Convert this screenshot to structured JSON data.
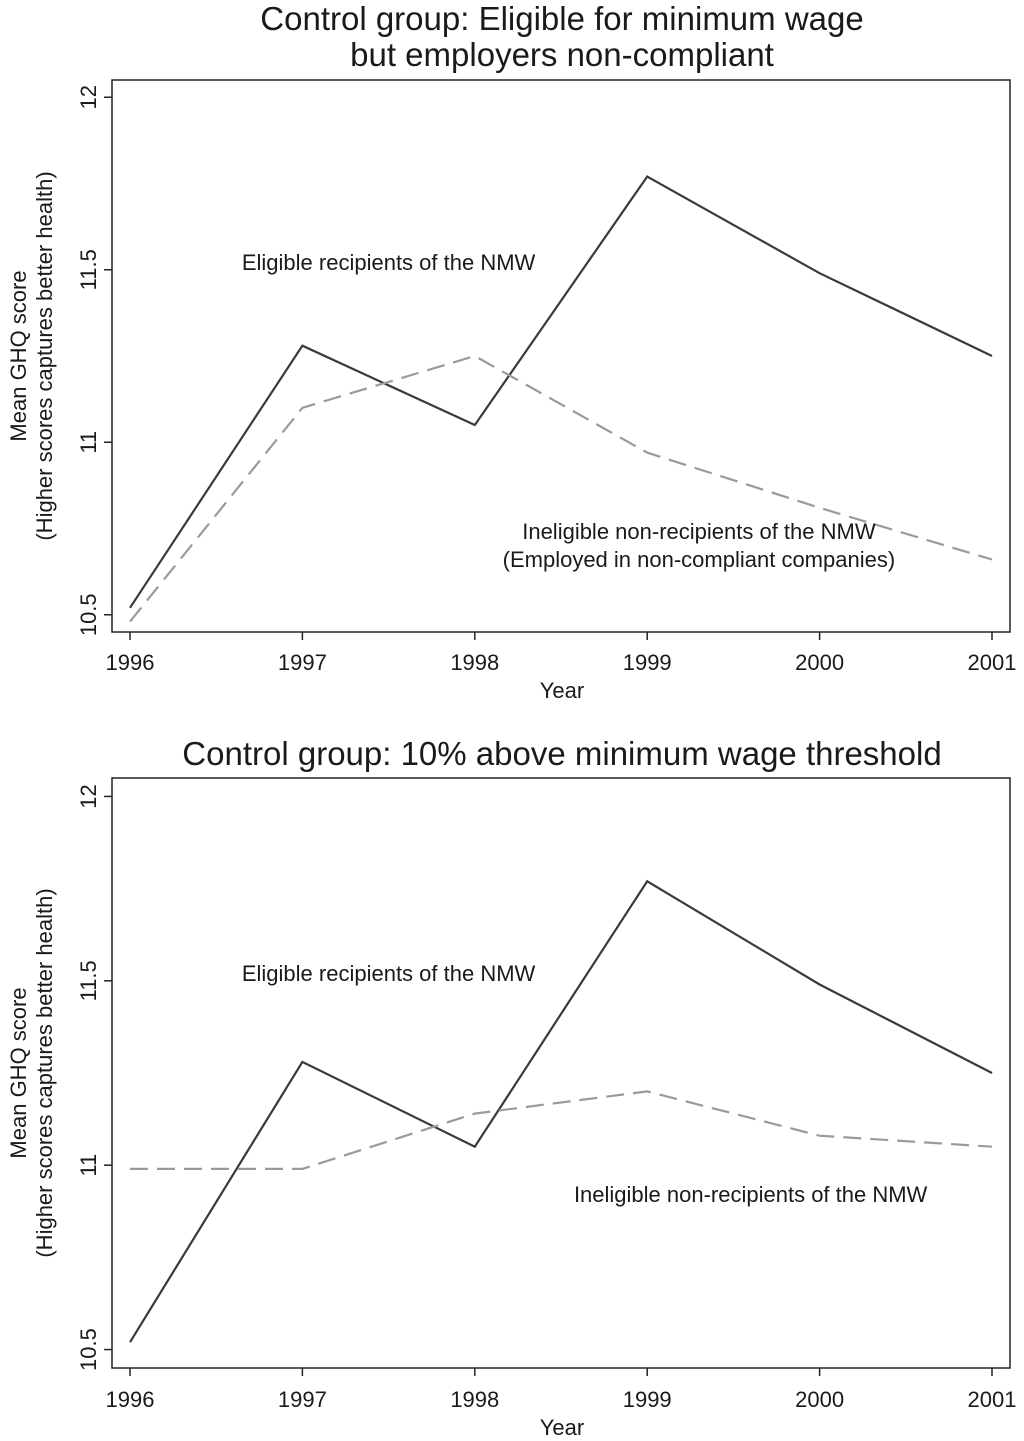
{
  "chart_data": [
    {
      "type": "line",
      "title": "Control group: Eligible for minimum wage but employers non-compliant",
      "title_lines": [
        "Control group: Eligible for minimum wage",
        "but employers non-compliant"
      ],
      "xlabel": "Year",
      "ylabel_lines": [
        "Mean GHQ score",
        "(Higher scores captures better health)"
      ],
      "x": [
        1996,
        1997,
        1998,
        1999,
        2000,
        2001
      ],
      "xtick_labels": [
        "1996",
        "1997",
        "1998",
        "1999",
        "2000",
        "2001"
      ],
      "ylim": [
        10.45,
        12.05
      ],
      "yticks": [
        10.5,
        11,
        11.5,
        12
      ],
      "ytick_labels": [
        "10.5",
        "11",
        "11.5",
        "12"
      ],
      "grid": false,
      "series": [
        {
          "name": "Eligible recipients of the NMW",
          "style": "solid",
          "color": "#3a3a3a",
          "values": [
            10.52,
            11.28,
            11.05,
            11.77,
            11.49,
            11.25
          ]
        },
        {
          "name": "Ineligible non-recipients of the NMW (Employed in non-compliant companies)",
          "style": "dashed",
          "color": "#9a9a9a",
          "values": [
            10.48,
            11.1,
            11.25,
            10.97,
            10.81,
            10.66
          ]
        }
      ],
      "annotations": [
        {
          "lines": [
            "Eligible recipients of the NMW"
          ],
          "x": 1997.5,
          "y": 11.5
        },
        {
          "lines": [
            "Ineligible non-recipients of the NMW",
            "(Employed in non-compliant companies)"
          ],
          "x": 1999.3,
          "y": 10.72
        }
      ]
    },
    {
      "type": "line",
      "title": "Control group: 10% above minimum wage threshold",
      "title_lines": [
        "Control group: 10% above minimum wage threshold"
      ],
      "xlabel": "Year",
      "ylabel_lines": [
        "Mean GHQ score",
        "(Higher scores captures better health)"
      ],
      "x": [
        1996,
        1997,
        1998,
        1999,
        2000,
        2001
      ],
      "xtick_labels": [
        "1996",
        "1997",
        "1998",
        "1999",
        "2000",
        "2001"
      ],
      "ylim": [
        10.45,
        12.05
      ],
      "yticks": [
        10.5,
        11,
        11.5,
        12
      ],
      "ytick_labels": [
        "10.5",
        "11",
        "11.5",
        "12"
      ],
      "grid": false,
      "series": [
        {
          "name": "Eligible recipients of the NMW",
          "style": "solid",
          "color": "#3a3a3a",
          "values": [
            10.52,
            11.28,
            11.05,
            11.77,
            11.49,
            11.25
          ]
        },
        {
          "name": "Ineligible non-recipients of the NMW",
          "style": "dashed",
          "color": "#9a9a9a",
          "values": [
            10.99,
            10.99,
            11.14,
            11.2,
            11.08,
            11.05
          ]
        }
      ],
      "annotations": [
        {
          "lines": [
            "Eligible recipients of the NMW"
          ],
          "x": 1997.5,
          "y": 11.5
        },
        {
          "lines": [
            "Ineligible non-recipients of the NMW"
          ],
          "x": 1999.6,
          "y": 10.9
        }
      ]
    }
  ]
}
